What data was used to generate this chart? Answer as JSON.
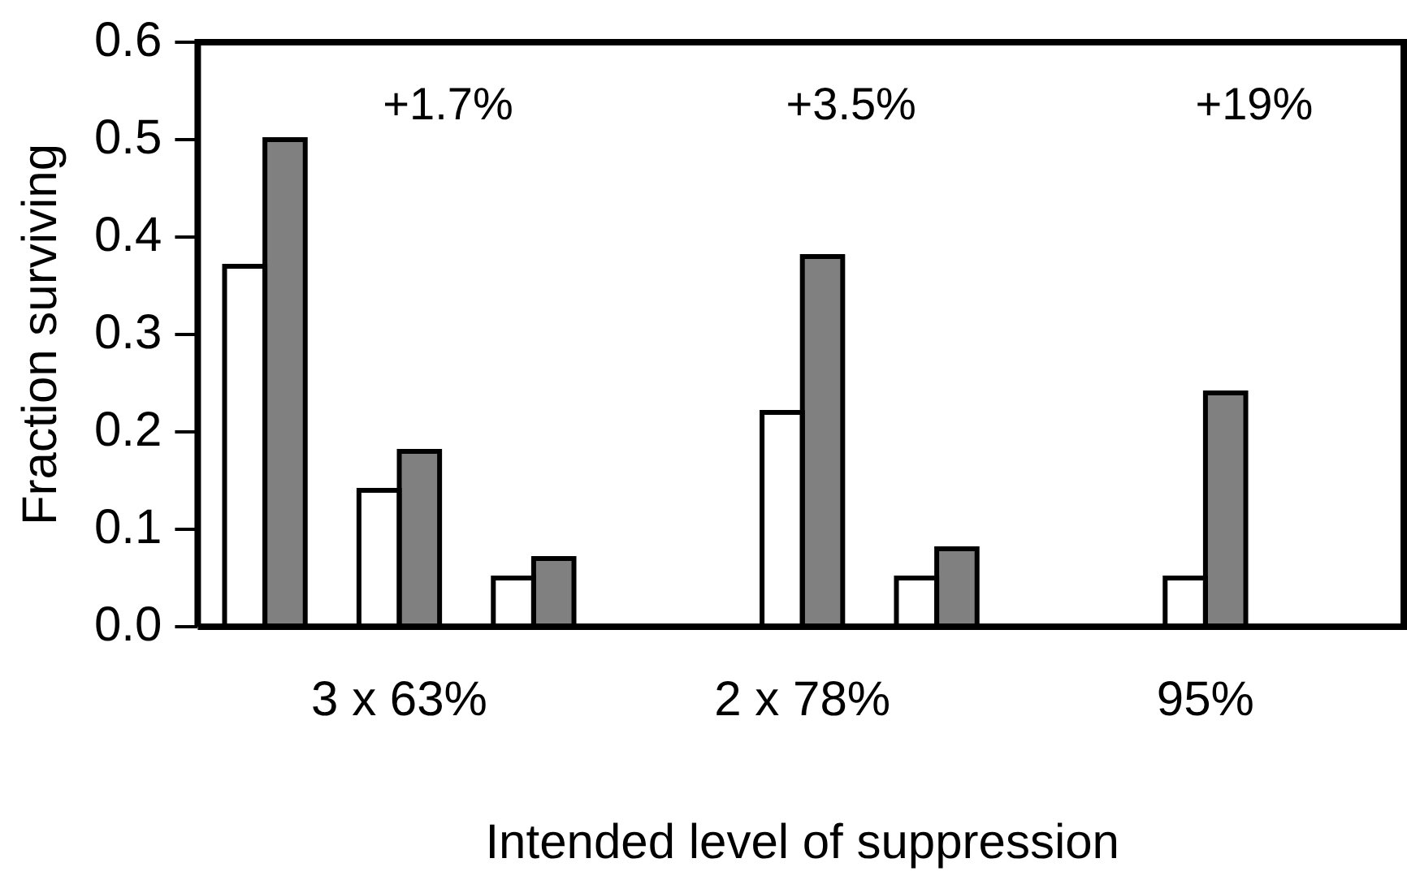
{
  "chart_data": {
    "type": "bar",
    "xlabel": "Intended level of suppression",
    "ylabel": "Fraction surviving",
    "categories": [
      null,
      "3 x 63%",
      null,
      null,
      "2 x 78%",
      null,
      null,
      "95%",
      null
    ],
    "series": [
      {
        "color": "#ffffff",
        "values": [
          0.37,
          0.14,
          0.05,
          null,
          0.22,
          0.05,
          null,
          0.05,
          null
        ]
      },
      {
        "color": "#808080",
        "values": [
          0.5,
          0.18,
          0.07,
          null,
          0.38,
          0.08,
          null,
          0.24,
          null
        ]
      }
    ],
    "ylim": [
      0,
      0.6
    ],
    "yticks": [
      {
        "value": 0,
        "label": "0.0"
      },
      0.1,
      0.2,
      0.3,
      0.4,
      0.5,
      0.6
    ],
    "annotations": [
      "+1.7%",
      "+3.5%",
      "+19%"
    ],
    "grid": false,
    "legend": false
  }
}
